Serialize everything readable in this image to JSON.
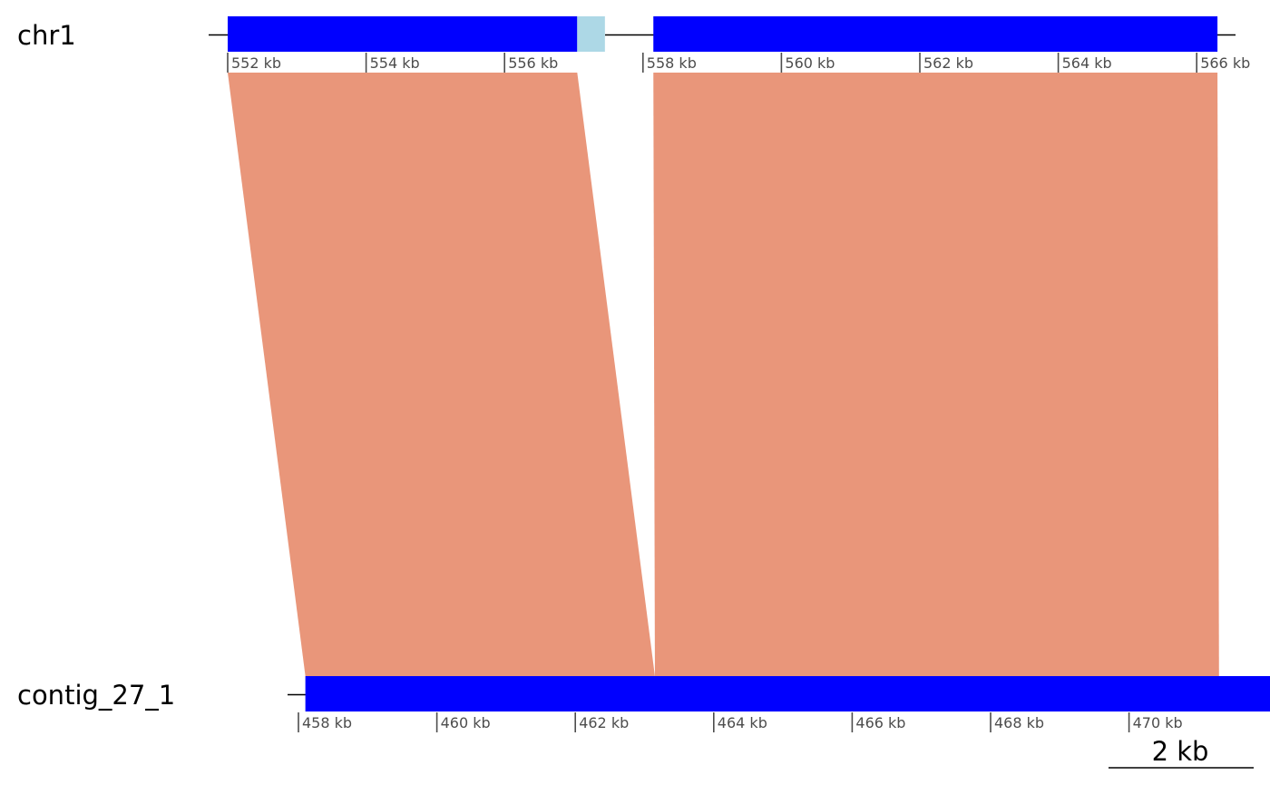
{
  "sequences": [
    {
      "id": "chr1",
      "label": "chr1",
      "tick_labels": [
        "552 kb",
        "554 kb",
        "556 kb",
        "558 kb",
        "560 kb",
        "562 kb",
        "564 kb",
        "566 kb"
      ]
    },
    {
      "id": "contig",
      "label": "contig_27_1",
      "tick_labels": [
        "458 kb",
        "460 kb",
        "462 kb",
        "464 kb",
        "466 kb",
        "468 kb",
        "470 kb"
      ]
    }
  ],
  "scale_bar": {
    "label": "2 kb"
  },
  "colors": {
    "block": "#0000ff",
    "gap_block": "#add8e6",
    "link": "#e9967a",
    "line": "#000000",
    "tick": "#4d4d4d"
  },
  "blocks": [
    {
      "seq": "chr1",
      "kind": "aligned",
      "start_kb": 552.0,
      "end_kb": 557.05
    },
    {
      "seq": "chr1",
      "kind": "unaligned",
      "start_kb": 557.05,
      "end_kb": 557.45
    },
    {
      "seq": "chr1",
      "kind": "aligned",
      "start_kb": 558.15,
      "end_kb": 566.3
    },
    {
      "seq": "contig",
      "kind": "aligned",
      "start_kb": 458.1,
      "end_kb": 472.4
    }
  ],
  "links": [
    {
      "top_start_kb": 552.0,
      "top_end_kb": 557.05,
      "bottom_start_kb": 458.1,
      "bottom_end_kb": 463.15
    },
    {
      "top_start_kb": 558.15,
      "top_end_kb": 566.3,
      "bottom_start_kb": 463.15,
      "bottom_end_kb": 471.3
    }
  ]
}
